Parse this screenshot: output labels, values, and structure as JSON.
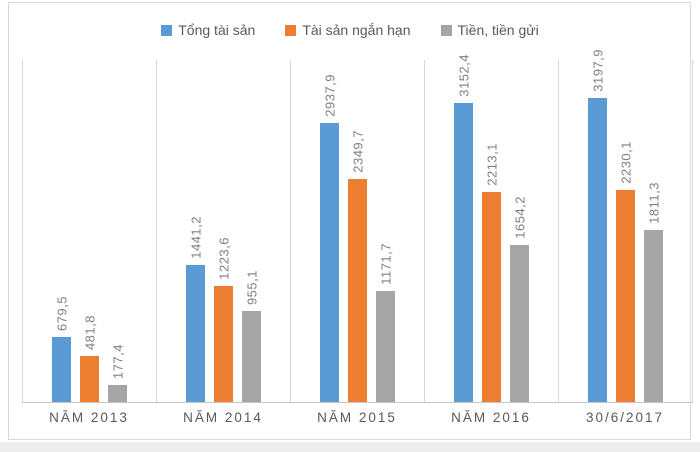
{
  "chart_data": {
    "type": "bar",
    "title": "",
    "xlabel": "",
    "ylabel": "",
    "categories": [
      "NĂM 2013",
      "NĂM 2014",
      "NĂM 2015",
      "NĂM 2016",
      "30/6/2017"
    ],
    "series": [
      {
        "name": "Tổng tài sản",
        "color": "#5b9bd5",
        "values": [
          679.5,
          1441.2,
          2937.9,
          3152.4,
          3197.9
        ],
        "display_labels": [
          "679,5",
          "1441,2",
          "2937,9",
          "3152,4",
          "3197,9"
        ]
      },
      {
        "name": "Tài sản ngắn hạn",
        "color": "#ed7d31",
        "values": [
          481.8,
          1223.6,
          2349.7,
          2213.1,
          2230.1
        ],
        "display_labels": [
          "481,8",
          "1223,6",
          "2349,7",
          "2213,1",
          "2230,1"
        ]
      },
      {
        "name": "Tiền, tiền gửi",
        "color": "#a5a5a5",
        "values": [
          177.4,
          955.1,
          1171.7,
          1654.2,
          1811.3
        ],
        "display_labels": [
          "177,4",
          "955,1",
          "1171,7",
          "1654,2",
          "1811,3"
        ]
      }
    ],
    "ylim": [
      0,
      3600
    ],
    "y_axis_visible": false,
    "grid": "vertical-category-separators",
    "legend_position": "top",
    "value_labels_rotated": true,
    "decimal_separator": ","
  },
  "colors": {
    "series_blue": "#5b9bd5",
    "series_orange": "#ed7d31",
    "series_gray": "#a5a5a5",
    "gridline": "#d9d9d9",
    "axis_line": "#c6c6c6",
    "value_label_text": "#7f7f7f",
    "category_label_text": "#595959",
    "legend_text": "#595959",
    "frame_border": "#d9d9d9",
    "background": "#ffffff"
  }
}
